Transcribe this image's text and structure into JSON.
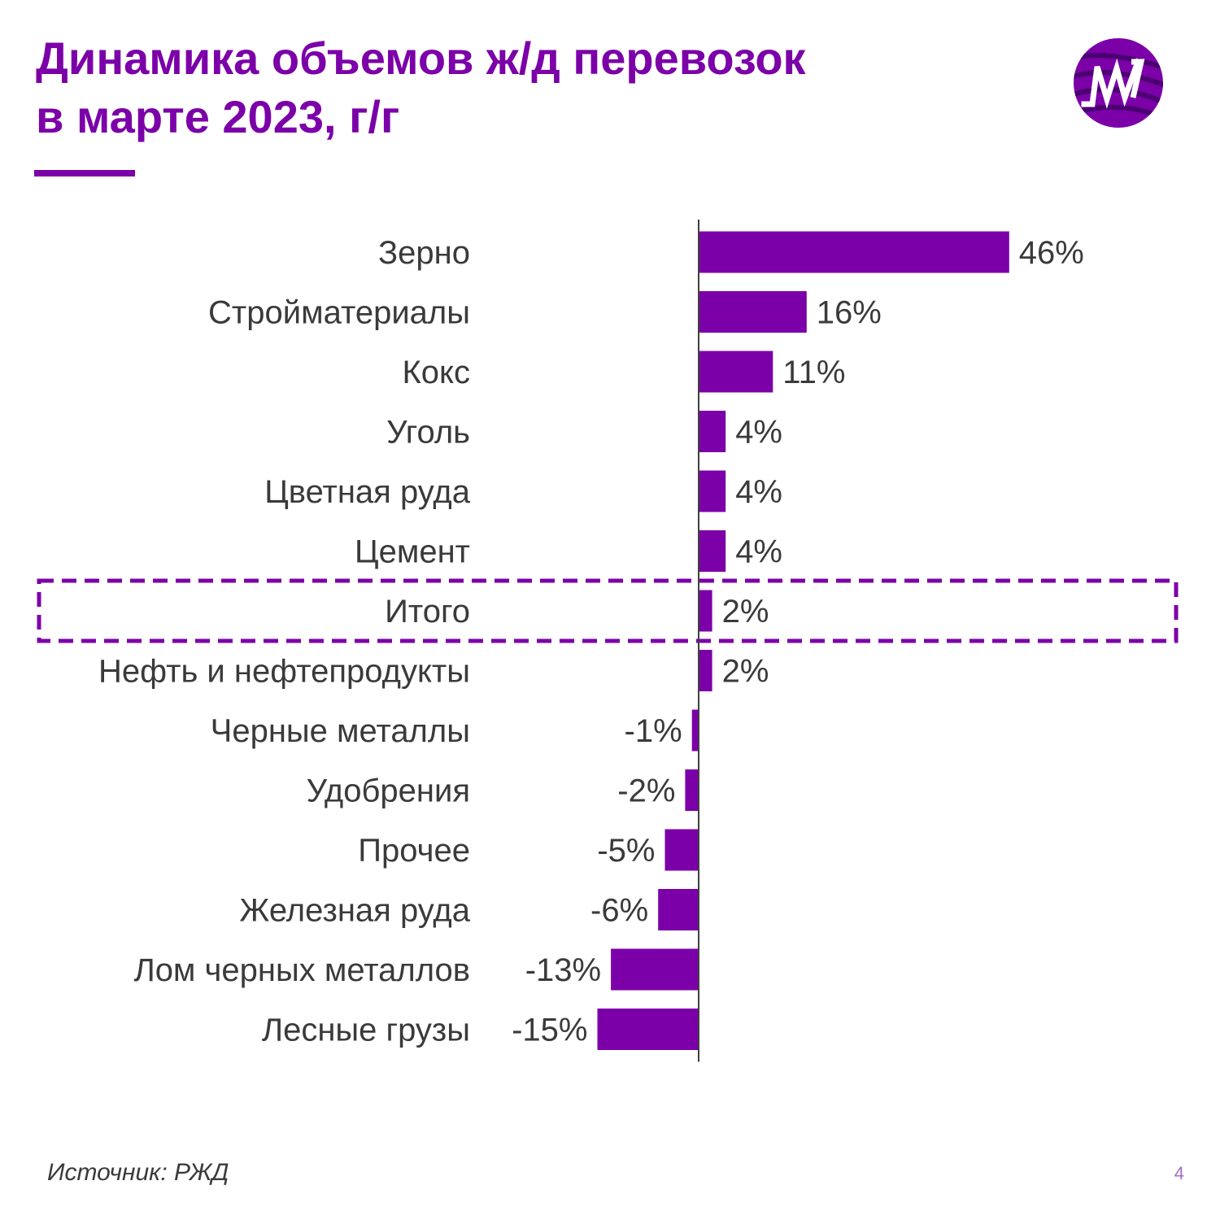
{
  "title_lines": [
    "Динамика объемов ж/д перевозок",
    "в марте 2023, г/г"
  ],
  "logo": {
    "icon": "mw-logo-icon",
    "lettering": "MW"
  },
  "colors": {
    "accent": "#7b00a8",
    "bar": "#7b00a8",
    "text": "#3a3a3a",
    "page_number": "#a46cc6"
  },
  "source": "Источник: РЖД",
  "page_number": "4",
  "chart_data": {
    "type": "bar",
    "orientation": "horizontal",
    "categories": [
      "Зерно",
      "Стройматериалы",
      "Кокс",
      "Уголь",
      "Цветная руда",
      "Цемент",
      "Итого",
      "Нефть и нефтепродукты",
      "Черные металлы",
      "Удобрения",
      "Прочее",
      "Железная руда",
      "Лом черных металлов",
      "Лесные грузы"
    ],
    "values": [
      46,
      16,
      11,
      4,
      4,
      4,
      2,
      2,
      -1,
      -2,
      -5,
      -6,
      -13,
      -15
    ],
    "value_labels": [
      "46%",
      "16%",
      "11%",
      "4%",
      "4%",
      "4%",
      "2%",
      "2%",
      "-1%",
      "-2%",
      "-5%",
      "-6%",
      "-13%",
      "-15%"
    ],
    "highlighted_category": "Итого",
    "unit": "%",
    "grid": false,
    "legend": "none"
  }
}
